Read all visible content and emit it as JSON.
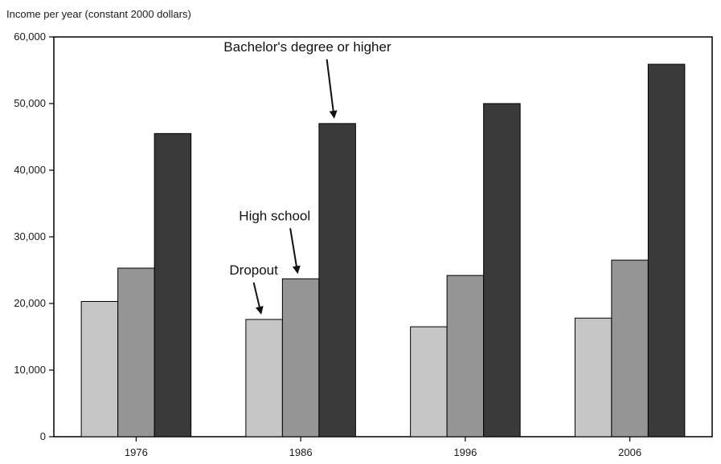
{
  "chart_data": {
    "type": "bar",
    "ylabel": "Income per year (constant 2000 dollars)",
    "xlabel": "",
    "categories": [
      "1976",
      "1986",
      "1996",
      "2006"
    ],
    "ylim": [
      0,
      60000
    ],
    "yticks": [
      "0",
      "10,000",
      "20,000",
      "30,000",
      "40,000",
      "50,000",
      "60,000"
    ],
    "grid": false,
    "series": [
      {
        "name": "Dropout",
        "color": "#c6c6c6",
        "values": [
          20300,
          17600,
          16500,
          17800
        ]
      },
      {
        "name": "High school",
        "color": "#959595",
        "values": [
          25300,
          23700,
          24200,
          26500
        ]
      },
      {
        "name": "Bachelor's degree or higher",
        "color": "#3a3a3a",
        "values": [
          45500,
          47000,
          50000,
          55900
        ]
      }
    ],
    "annotations": [
      {
        "text": "Dropout",
        "series": 0,
        "category": 1
      },
      {
        "text": "High school",
        "series": 1,
        "category": 1
      },
      {
        "text": "Bachelor's degree or higher",
        "series": 2,
        "category": 1
      }
    ]
  }
}
